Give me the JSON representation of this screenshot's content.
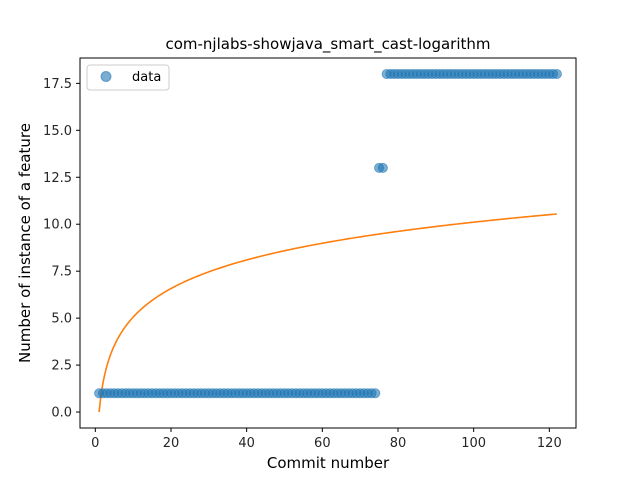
{
  "chart_data": {
    "type": "scatter",
    "title": "com-njlabs-showjava_smart_cast-logarithm",
    "xlabel": "Commit number",
    "ylabel": "Number of instance of a feature",
    "xlim": [
      -4.05,
      127.05
    ],
    "ylim": [
      -0.85,
      18.85
    ],
    "xticks": [
      0,
      20,
      40,
      60,
      80,
      100,
      120
    ],
    "yticks": [
      0.0,
      2.5,
      5.0,
      7.5,
      10.0,
      12.5,
      15.0,
      17.5
    ],
    "xtick_labels": [
      "0",
      "20",
      "40",
      "60",
      "80",
      "100",
      "120"
    ],
    "ytick_labels": [
      "0.0",
      "2.5",
      "5.0",
      "7.5",
      "10.0",
      "12.5",
      "15.0",
      "17.5"
    ],
    "legend": {
      "position": "upper-left",
      "entries": [
        "data"
      ]
    },
    "grid": false,
    "colors": {
      "data": "#1f77b4",
      "fit": "#ff7f0e"
    },
    "series": [
      {
        "name": "data",
        "kind": "scatter",
        "segments": [
          {
            "x_start": 1,
            "x_end": 74,
            "y": 1
          },
          {
            "x_start": 75,
            "x_end": 76,
            "y": 13
          },
          {
            "x_start": 77,
            "x_end": 122,
            "y": 18
          }
        ]
      },
      {
        "kind": "line",
        "formula": "y = a * ln(x)",
        "a": 2.195,
        "x_range": [
          1,
          122
        ]
      }
    ]
  }
}
